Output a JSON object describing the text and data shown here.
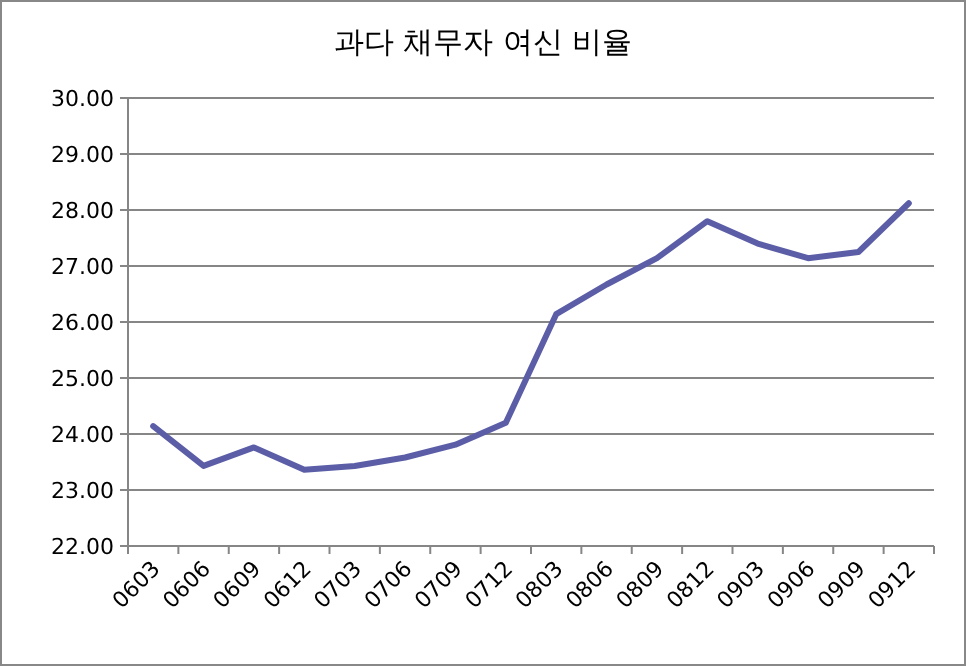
{
  "chart_data": {
    "type": "line",
    "title": "과다 채무자 여신 비율",
    "categories": [
      "0603",
      "0606",
      "0609",
      "0612",
      "0703",
      "0706",
      "0709",
      "0712",
      "0803",
      "0806",
      "0809",
      "0812",
      "0903",
      "0906",
      "0909",
      "0912"
    ],
    "series": [
      {
        "color": "#5b5ea6",
        "values": [
          24.14,
          23.43,
          23.76,
          23.36,
          23.43,
          23.58,
          23.81,
          24.2,
          26.14,
          26.67,
          27.14,
          27.8,
          27.4,
          27.14,
          27.25,
          28.12
        ]
      }
    ],
    "ylim": [
      22,
      30
    ],
    "yticks": [
      {
        "value": 22,
        "label": "22.00"
      },
      {
        "value": 23,
        "label": "23.00"
      },
      {
        "value": 24,
        "label": "24.00"
      },
      {
        "value": 25,
        "label": "25.00"
      },
      {
        "value": 26,
        "label": "26.00"
      },
      {
        "value": 27,
        "label": "27.00"
      },
      {
        "value": 28,
        "label": "28.00"
      },
      {
        "value": 29,
        "label": "29.00"
      },
      {
        "value": 30,
        "label": "30.00"
      }
    ],
    "grid": "y",
    "marker": "none",
    "line_style": "solid"
  }
}
